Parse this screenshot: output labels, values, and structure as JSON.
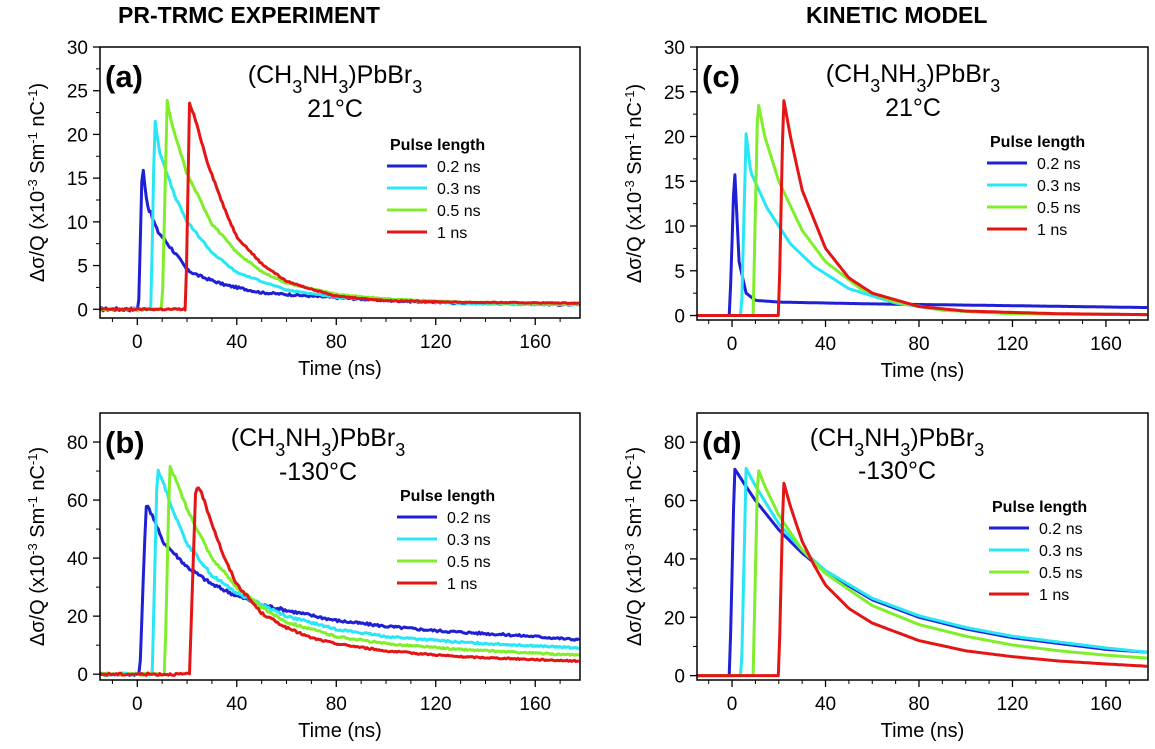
{
  "columns": {
    "left_title": "PR-TRMC EXPERIMENT",
    "right_title": "KINETIC MODEL"
  },
  "chart_data": [
    {
      "type": "line",
      "panel_label": "(a)",
      "title": "(CH3NH3)PbBr3",
      "subtitle": "21°C",
      "xlabel": "Time (ns)",
      "ylabel": "Δσ/Q (x10^-3 Sm^-1 nC^-1)",
      "xlim": [
        -15,
        178
      ],
      "ylim": [
        -1,
        30
      ],
      "xticks": [
        0,
        40,
        80,
        120,
        160
      ],
      "yticks": [
        0,
        5,
        10,
        15,
        20,
        25,
        30
      ],
      "legend_title": "Pulse length",
      "legend_position": "right",
      "series": [
        {
          "name": "0.2 ns",
          "color": "#1f1fd6",
          "noise": 0.25,
          "points": [
            [
              -15,
              0
            ],
            [
              0.5,
              0
            ],
            [
              2,
              16.8
            ],
            [
              4,
              12
            ],
            [
              8,
              9
            ],
            [
              15,
              6.5
            ],
            [
              20,
              4.5
            ],
            [
              25,
              3.8
            ],
            [
              35,
              2.8
            ],
            [
              50,
              1.9
            ],
            [
              70,
              1.5
            ],
            [
              100,
              1.0
            ],
            [
              130,
              0.7
            ],
            [
              160,
              0.6
            ],
            [
              175,
              0.5
            ]
          ]
        },
        {
          "name": "0.3 ns",
          "color": "#27e6f5",
          "noise": 0.12,
          "points": [
            [
              -15,
              0
            ],
            [
              5.5,
              0
            ],
            [
              7,
              21.8
            ],
            [
              9,
              18
            ],
            [
              15,
              13
            ],
            [
              20,
              10
            ],
            [
              30,
              6.5
            ],
            [
              40,
              4.2
            ],
            [
              60,
              2.2
            ],
            [
              80,
              1.4
            ],
            [
              110,
              0.9
            ],
            [
              140,
              0.6
            ],
            [
              178,
              0.5
            ]
          ]
        },
        {
          "name": "0.5 ns",
          "color": "#80ee2a",
          "noise": 0.12,
          "points": [
            [
              -15,
              0
            ],
            [
              10,
              0
            ],
            [
              12,
              23.8
            ],
            [
              14,
              21
            ],
            [
              20,
              15.5
            ],
            [
              30,
              9.8
            ],
            [
              40,
              6.5
            ],
            [
              50,
              4.3
            ],
            [
              60,
              3.0
            ],
            [
              80,
              1.7
            ],
            [
              100,
              1.2
            ],
            [
              130,
              0.8
            ],
            [
              178,
              0.6
            ]
          ]
        },
        {
          "name": "1 ns",
          "color": "#e41515",
          "noise": 0.12,
          "points": [
            [
              -15,
              0
            ],
            [
              19.5,
              0
            ],
            [
              21,
              23.5
            ],
            [
              23,
              22
            ],
            [
              28,
              17
            ],
            [
              35,
              11.5
            ],
            [
              40,
              8.3
            ],
            [
              50,
              5.2
            ],
            [
              60,
              3.2
            ],
            [
              70,
              2.3
            ],
            [
              80,
              1.5
            ],
            [
              100,
              1.0
            ],
            [
              130,
              0.8
            ],
            [
              178,
              0.7
            ]
          ]
        }
      ]
    },
    {
      "type": "line",
      "panel_label": "(b)",
      "title": "(CH3NH3)PbBr3",
      "subtitle": "-130°C",
      "xlabel": "Time (ns)",
      "ylabel": "Δσ/Q (x10^-3 Sm^-1 nC^-1)",
      "xlim": [
        -15,
        178
      ],
      "ylim": [
        -2,
        90
      ],
      "xticks": [
        0,
        40,
        80,
        120,
        160
      ],
      "yticks": [
        0,
        20,
        40,
        60,
        80
      ],
      "legend_title": "Pulse length",
      "legend_position": "right",
      "series": [
        {
          "name": "0.2 ns",
          "color": "#1f1fd6",
          "noise": 0.6,
          "points": [
            [
              -15,
              0
            ],
            [
              1,
              0
            ],
            [
              3.5,
              58.5
            ],
            [
              6,
              55
            ],
            [
              10,
              46
            ],
            [
              20,
              37
            ],
            [
              30,
              31
            ],
            [
              40,
              27
            ],
            [
              50,
              24
            ],
            [
              60,
              22
            ],
            [
              80,
              18.5
            ],
            [
              100,
              16.5
            ],
            [
              120,
              15
            ],
            [
              140,
              14
            ],
            [
              160,
              13
            ],
            [
              175,
              12
            ]
          ]
        },
        {
          "name": "0.3 ns",
          "color": "#27e6f5",
          "noise": 0.5,
          "points": [
            [
              -15,
              0
            ],
            [
              6,
              0
            ],
            [
              8,
              70.5
            ],
            [
              10,
              67
            ],
            [
              15,
              55
            ],
            [
              20,
              45
            ],
            [
              30,
              34
            ],
            [
              40,
              28
            ],
            [
              50,
              24
            ],
            [
              60,
              20
            ],
            [
              80,
              15.5
            ],
            [
              100,
              13
            ],
            [
              130,
              11
            ],
            [
              178,
              9
            ]
          ]
        },
        {
          "name": "0.5 ns",
          "color": "#80ee2a",
          "noise": 0.5,
          "points": [
            [
              -15,
              0
            ],
            [
              11,
              0
            ],
            [
              13,
              71.5
            ],
            [
              15,
              68
            ],
            [
              20,
              57
            ],
            [
              30,
              40
            ],
            [
              40,
              30
            ],
            [
              50,
              23
            ],
            [
              60,
              18
            ],
            [
              80,
              13
            ],
            [
              100,
              10.5
            ],
            [
              130,
              8.5
            ],
            [
              178,
              6.5
            ]
          ]
        },
        {
          "name": "1 ns",
          "color": "#e41515",
          "noise": 0.5,
          "points": [
            [
              -15,
              0
            ],
            [
              21,
              0
            ],
            [
              23.5,
              65
            ],
            [
              26,
              62
            ],
            [
              30,
              52
            ],
            [
              35,
              40
            ],
            [
              40,
              31
            ],
            [
              50,
              21
            ],
            [
              60,
              16
            ],
            [
              70,
              12.5
            ],
            [
              80,
              10.5
            ],
            [
              100,
              8
            ],
            [
              130,
              6
            ],
            [
              178,
              4.5
            ]
          ]
        }
      ]
    },
    {
      "type": "line",
      "panel_label": "(c)",
      "title": "(CH3NH3)PbBr3",
      "subtitle": "21°C",
      "xlabel": "Time (ns)",
      "ylabel": "Δσ/Q (x10^-3 Sm^-1 nC^-1)",
      "xlim": [
        -15,
        178
      ],
      "ylim": [
        -0.5,
        30
      ],
      "xticks": [
        0,
        40,
        80,
        120,
        160
      ],
      "yticks": [
        0,
        5,
        10,
        15,
        20,
        25,
        30
      ],
      "legend_title": "Pulse length",
      "legend_position": "right",
      "series": [
        {
          "name": "0.2 ns",
          "color": "#1f1fd6",
          "noise": 0,
          "points": [
            [
              -15,
              0
            ],
            [
              -1,
              0
            ],
            [
              1,
              16.8
            ],
            [
              3,
              6
            ],
            [
              6,
              2.5
            ],
            [
              10,
              1.7
            ],
            [
              20,
              1.5
            ],
            [
              60,
              1.3
            ],
            [
              120,
              1.1
            ],
            [
              175,
              0.9
            ]
          ]
        },
        {
          "name": "0.3 ns",
          "color": "#27e6f5",
          "noise": 0,
          "points": [
            [
              -15,
              0
            ],
            [
              4,
              0
            ],
            [
              6,
              20.3
            ],
            [
              8,
              16
            ],
            [
              15,
              12
            ],
            [
              25,
              8
            ],
            [
              35,
              5.5
            ],
            [
              50,
              3
            ],
            [
              70,
              1.4
            ],
            [
              90,
              0.6
            ],
            [
              120,
              0.2
            ],
            [
              178,
              0.1
            ]
          ]
        },
        {
          "name": "0.5 ns",
          "color": "#80ee2a",
          "noise": 0,
          "points": [
            [
              -15,
              0
            ],
            [
              9,
              0
            ],
            [
              11,
              24
            ],
            [
              14,
              20
            ],
            [
              20,
              15
            ],
            [
              30,
              9.5
            ],
            [
              40,
              6
            ],
            [
              55,
              3
            ],
            [
              70,
              1.5
            ],
            [
              90,
              0.6
            ],
            [
              120,
              0.2
            ],
            [
              178,
              0.1
            ]
          ]
        },
        {
          "name": "1 ns",
          "color": "#e41515",
          "noise": 0,
          "points": [
            [
              -15,
              0
            ],
            [
              20,
              0
            ],
            [
              22,
              24.3
            ],
            [
              25,
              20
            ],
            [
              30,
              14
            ],
            [
              40,
              7.5
            ],
            [
              50,
              4.2
            ],
            [
              60,
              2.5
            ],
            [
              80,
              1.0
            ],
            [
              100,
              0.5
            ],
            [
              140,
              0.2
            ],
            [
              178,
              0.1
            ]
          ]
        }
      ]
    },
    {
      "type": "line",
      "panel_label": "(d)",
      "title": "(CH3NH3)PbBr3",
      "subtitle": "-130°C",
      "xlabel": "Time (ns)",
      "ylabel": "Δσ/Q (x10^-3 Sm^-1 nC^-1)",
      "xlim": [
        -15,
        178
      ],
      "ylim": [
        -1.5,
        90
      ],
      "xticks": [
        0,
        40,
        80,
        120,
        160
      ],
      "yticks": [
        0,
        20,
        40,
        60,
        80
      ],
      "legend_title": "Pulse length",
      "legend_position": "right",
      "series": [
        {
          "name": "0.2 ns",
          "color": "#1f1fd6",
          "noise": 0,
          "points": [
            [
              -15,
              0
            ],
            [
              -1,
              0
            ],
            [
              1,
              71
            ],
            [
              5,
              66
            ],
            [
              10,
              60
            ],
            [
              20,
              50
            ],
            [
              30,
              42
            ],
            [
              40,
              35.5
            ],
            [
              60,
              26
            ],
            [
              80,
              20
            ],
            [
              100,
              16
            ],
            [
              120,
              13
            ],
            [
              140,
              11
            ],
            [
              160,
              9
            ],
            [
              178,
              8
            ]
          ]
        },
        {
          "name": "0.3 ns",
          "color": "#27e6f5",
          "noise": 0,
          "points": [
            [
              -15,
              0
            ],
            [
              4,
              0
            ],
            [
              6,
              71
            ],
            [
              10,
              65
            ],
            [
              20,
              52
            ],
            [
              30,
              43
            ],
            [
              40,
              36
            ],
            [
              60,
              26.5
            ],
            [
              80,
              20.5
            ],
            [
              100,
              16.5
            ],
            [
              120,
              13.5
            ],
            [
              140,
              11.5
            ],
            [
              160,
              9.5
            ],
            [
              178,
              8
            ]
          ]
        },
        {
          "name": "0.5 ns",
          "color": "#80ee2a",
          "noise": 0,
          "points": [
            [
              -15,
              0
            ],
            [
              9,
              0
            ],
            [
              11,
              71
            ],
            [
              14,
              65
            ],
            [
              20,
              55
            ],
            [
              30,
              43
            ],
            [
              40,
              35
            ],
            [
              60,
              24
            ],
            [
              80,
              17.5
            ],
            [
              100,
              13.5
            ],
            [
              120,
              10.5
            ],
            [
              140,
              8.5
            ],
            [
              160,
              7
            ],
            [
              178,
              6
            ]
          ]
        },
        {
          "name": "1 ns",
          "color": "#e41515",
          "noise": 0,
          "points": [
            [
              -15,
              0
            ],
            [
              20,
              0
            ],
            [
              22,
              66.5
            ],
            [
              25,
              58
            ],
            [
              30,
              46
            ],
            [
              35,
              38
            ],
            [
              40,
              31
            ],
            [
              50,
              23
            ],
            [
              60,
              18
            ],
            [
              80,
              12
            ],
            [
              100,
              8.5
            ],
            [
              120,
              6.5
            ],
            [
              140,
              5
            ],
            [
              160,
              4
            ],
            [
              178,
              3.2
            ]
          ]
        }
      ]
    }
  ]
}
